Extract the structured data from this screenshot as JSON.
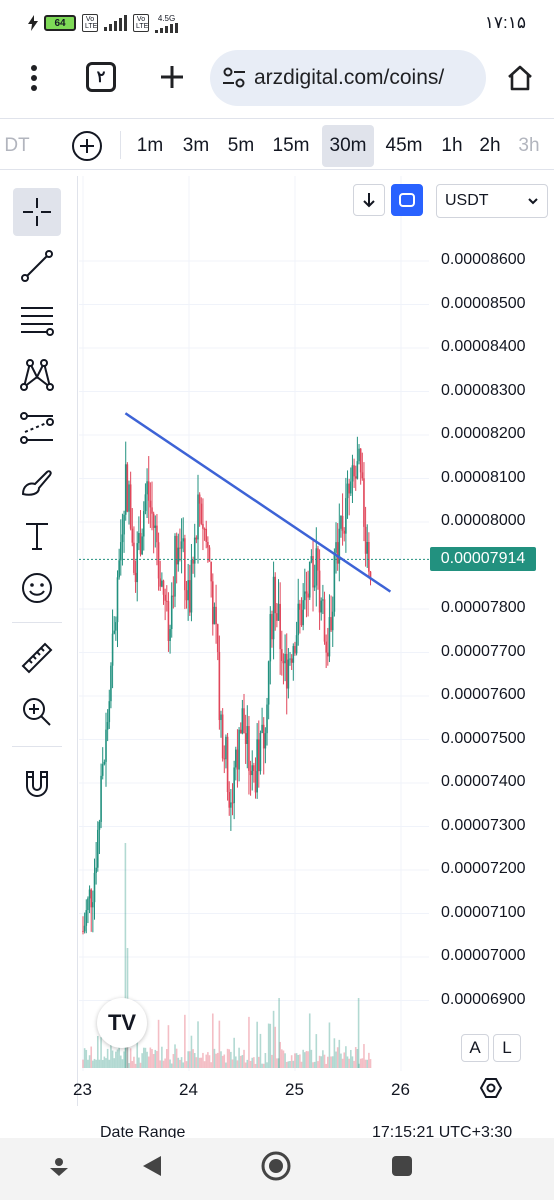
{
  "status": {
    "time": "۱۷:۱۵",
    "battery": "64",
    "volte_1": "Vo LTE",
    "volte_2": "Vo LTE",
    "network": "4.5G"
  },
  "browser": {
    "tab_count": "۲",
    "url": "arzdigital.com/coins/"
  },
  "timeframes": {
    "symbol_fragment": "DT",
    "items": [
      "1m",
      "3m",
      "5m",
      "15m",
      "30m",
      "45m",
      "1h",
      "2h",
      "3h"
    ],
    "active": "30m"
  },
  "chart": {
    "currency": "USDT",
    "last_price": "0.00007914",
    "buttons": {
      "auto": "A",
      "log": "L"
    },
    "logo": "TV",
    "footer_left": "Date Range",
    "footer_right": "17:15:21 UTC+3:30"
  },
  "chart_data": {
    "type": "candlestick",
    "y_axis_labels": [
      "0.00008600",
      "0.00008500",
      "0.00008400",
      "0.00008300",
      "0.00008200",
      "0.00008100",
      "0.00008000",
      "0.00007800",
      "0.00007700",
      "0.00007600",
      "0.00007500",
      "0.00007400",
      "0.00007300",
      "0.00007200",
      "0.00007100",
      "0.00007000",
      "0.00006900"
    ],
    "x_axis_labels": [
      "23",
      "24",
      "25",
      "26"
    ],
    "last_price": 7.914e-05,
    "trendline": {
      "start": {
        "day": 23.4,
        "price": 8.25e-05
      },
      "end": {
        "day": 25.9,
        "price": 7.84e-05
      }
    },
    "colors": {
      "up": "#22917f",
      "down": "#e0465a",
      "trendline": "#3d63d6",
      "price_tag": "#22917f"
    }
  }
}
